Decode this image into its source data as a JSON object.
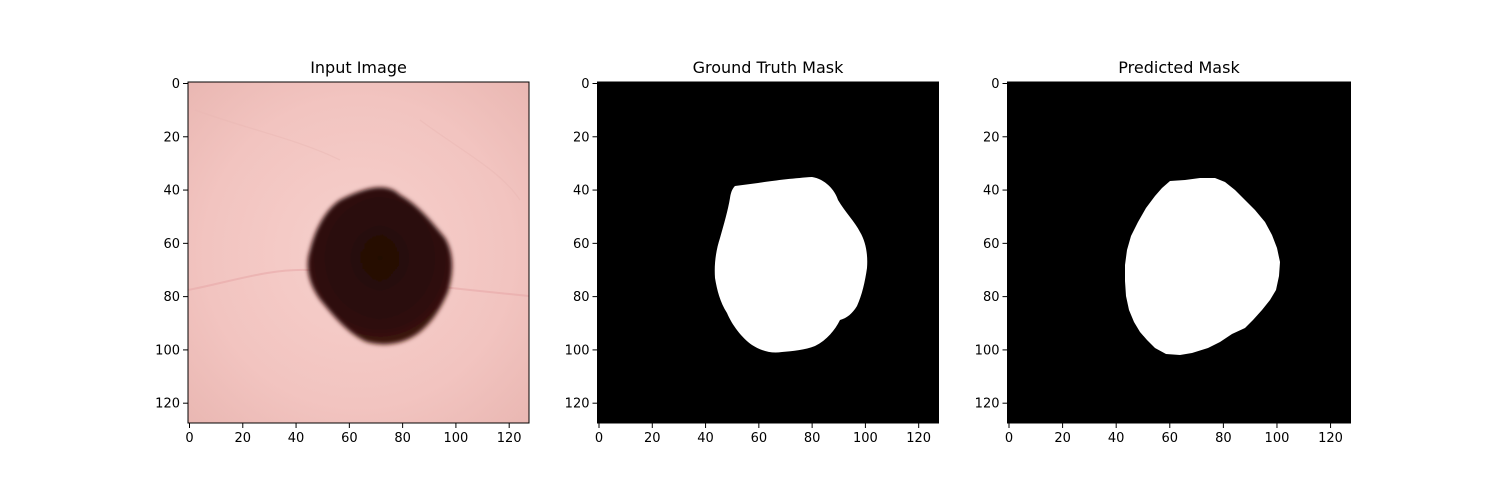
{
  "panels": [
    {
      "id": "input",
      "title": "Input Image",
      "kind": "image"
    },
    {
      "id": "gt",
      "title": "Ground Truth Mask",
      "kind": "mask"
    },
    {
      "id": "pred",
      "title": "Predicted Mask",
      "kind": "mask"
    }
  ],
  "axis": {
    "range": [
      0,
      128
    ],
    "x_ticks": [
      "0",
      "20",
      "40",
      "60",
      "80",
      "100",
      "120"
    ],
    "y_ticks": [
      "0",
      "20",
      "40",
      "60",
      "80",
      "100",
      "120"
    ],
    "y_inverted": true
  },
  "colors": {
    "skin": "#f2c4c0",
    "lesion": "#2a0c08",
    "mask_background": "#000000",
    "mask_foreground": "#ffffff"
  }
}
